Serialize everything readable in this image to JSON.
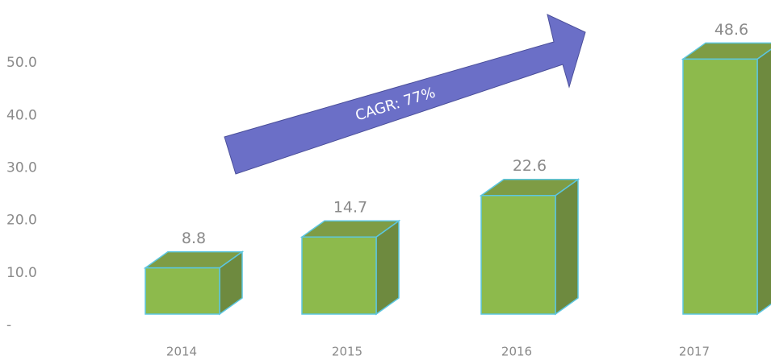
{
  "chart_data": {
    "type": "bar3d",
    "categories": [
      "2014",
      "2015",
      "2016",
      "2017"
    ],
    "values": [
      8.8,
      14.7,
      22.6,
      48.6
    ],
    "color": "#8dba4c",
    "ylim": [
      0,
      62
    ],
    "yticks": [
      {
        "value": 0,
        "label": "-"
      },
      {
        "value": 10,
        "label": "10.0"
      },
      {
        "value": 20,
        "label": "20.0"
      },
      {
        "value": 30,
        "label": "30.0"
      },
      {
        "value": 40,
        "label": "40.0"
      },
      {
        "value": 50,
        "label": "50.0"
      }
    ],
    "grid": false,
    "annotation": "CAGR: 77%"
  }
}
